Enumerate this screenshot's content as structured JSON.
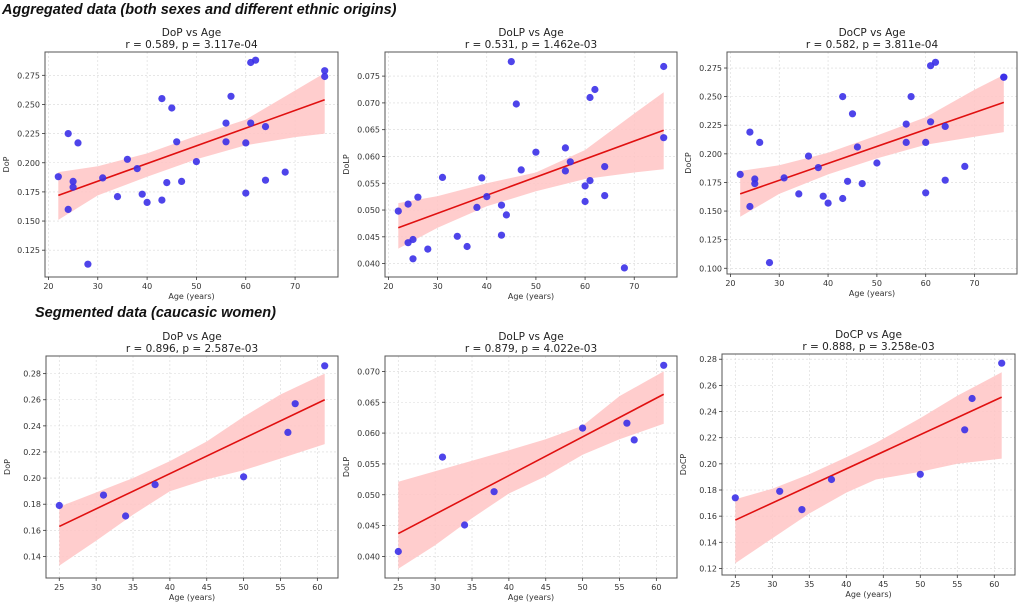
{
  "sections": {
    "aggregated_title": "Aggregated data (both sexes and different ethnic origins)",
    "segmented_title": "Segmented data (caucasic women)"
  },
  "colors": {
    "points": "#3b30e8",
    "fit_line": "#e01010",
    "ci_band": "#ffc4c4",
    "grid": "#d8d8d8",
    "frame": "#555555"
  },
  "chart_data": [
    {
      "id": "agg-dop",
      "type": "scatter",
      "title": "DoP vs Age",
      "subtitle": "r = 0.589, p = 3.117e-04",
      "xlabel": "Age (years)",
      "ylabel": "DoP",
      "xlim": [
        19.3,
        78.7
      ],
      "ylim": [
        0.102,
        0.295
      ],
      "xticks": [
        20,
        30,
        40,
        50,
        60,
        70
      ],
      "yticks": [
        0.125,
        0.15,
        0.175,
        0.2,
        0.225,
        0.25,
        0.275
      ],
      "ytick_labels": [
        "0.125",
        "0.150",
        "0.175",
        "0.200",
        "0.225",
        "0.250",
        "0.275"
      ],
      "grid": true,
      "points": [
        [
          22,
          0.188
        ],
        [
          24,
          0.225
        ],
        [
          24,
          0.16
        ],
        [
          25,
          0.184
        ],
        [
          25,
          0.179
        ],
        [
          26,
          0.217
        ],
        [
          28,
          0.113
        ],
        [
          31,
          0.187
        ],
        [
          34,
          0.171
        ],
        [
          36,
          0.203
        ],
        [
          38,
          0.195
        ],
        [
          39,
          0.173
        ],
        [
          40,
          0.166
        ],
        [
          43,
          0.255
        ],
        [
          43,
          0.168
        ],
        [
          44,
          0.183
        ],
        [
          45,
          0.247
        ],
        [
          46,
          0.218
        ],
        [
          47,
          0.184
        ],
        [
          50,
          0.201
        ],
        [
          56,
          0.234
        ],
        [
          56,
          0.218
        ],
        [
          57,
          0.257
        ],
        [
          60,
          0.217
        ],
        [
          60,
          0.174
        ],
        [
          61,
          0.286
        ],
        [
          61,
          0.234
        ],
        [
          62,
          0.288
        ],
        [
          64,
          0.231
        ],
        [
          64,
          0.185
        ],
        [
          68,
          0.192
        ],
        [
          76,
          0.279
        ],
        [
          76,
          0.274
        ]
      ],
      "fit": {
        "x": [
          22,
          76
        ],
        "y": [
          0.172,
          0.254
        ]
      },
      "ci": {
        "x": [
          22,
          30,
          40,
          50,
          60,
          70,
          76
        ],
        "lower": [
          0.151,
          0.172,
          0.188,
          0.203,
          0.215,
          0.222,
          0.225
        ],
        "upper": [
          0.192,
          0.197,
          0.208,
          0.223,
          0.237,
          0.262,
          0.277
        ]
      }
    },
    {
      "id": "agg-dolp",
      "type": "scatter",
      "title": "DoLP vs Age",
      "subtitle": "r = 0.531, p = 1.462e-03",
      "xlabel": "Age (years)",
      "ylabel": "DoLP",
      "xlim": [
        19.3,
        78.7
      ],
      "ylim": [
        0.0375,
        0.0795
      ],
      "xticks": [
        20,
        30,
        40,
        50,
        60,
        70
      ],
      "yticks": [
        0.04,
        0.045,
        0.05,
        0.055,
        0.06,
        0.065,
        0.07,
        0.075
      ],
      "ytick_labels": [
        "0.040",
        "0.045",
        "0.050",
        "0.055",
        "0.060",
        "0.065",
        "0.070",
        "0.075"
      ],
      "grid": true,
      "points": [
        [
          22,
          0.0498
        ],
        [
          24,
          0.0511
        ],
        [
          24,
          0.0439
        ],
        [
          25,
          0.0445
        ],
        [
          25,
          0.0409
        ],
        [
          26,
          0.0524
        ],
        [
          28,
          0.0427
        ],
        [
          31,
          0.0561
        ],
        [
          34,
          0.0451
        ],
        [
          36,
          0.0432
        ],
        [
          38,
          0.0505
        ],
        [
          39,
          0.056
        ],
        [
          40,
          0.0525
        ],
        [
          43,
          0.0509
        ],
        [
          43,
          0.0453
        ],
        [
          44,
          0.0491
        ],
        [
          45,
          0.0777
        ],
        [
          46,
          0.0698
        ],
        [
          47,
          0.0575
        ],
        [
          50,
          0.0608
        ],
        [
          56,
          0.0616
        ],
        [
          56,
          0.0573
        ],
        [
          57,
          0.059
        ],
        [
          60,
          0.0545
        ],
        [
          60,
          0.0516
        ],
        [
          61,
          0.071
        ],
        [
          61,
          0.0555
        ],
        [
          62,
          0.0725
        ],
        [
          64,
          0.0581
        ],
        [
          64,
          0.0527
        ],
        [
          68,
          0.0392
        ],
        [
          76,
          0.0768
        ],
        [
          76,
          0.0635
        ]
      ],
      "fit": {
        "x": [
          22,
          76
        ],
        "y": [
          0.0467,
          0.0649
        ]
      },
      "ci": {
        "x": [
          22,
          30,
          40,
          50,
          60,
          70,
          76
        ],
        "lower": [
          0.0428,
          0.0467,
          0.0507,
          0.0535,
          0.0558,
          0.057,
          0.0576
        ],
        "upper": [
          0.0513,
          0.0526,
          0.055,
          0.057,
          0.0612,
          0.068,
          0.072
        ]
      }
    },
    {
      "id": "agg-docp",
      "type": "scatter",
      "title": "DoCP vs Age",
      "subtitle": "r = 0.582, p = 3.811e-04",
      "xlabel": "Age (years)",
      "ylabel": "DoCP",
      "xlim": [
        19.3,
        78.7
      ],
      "ylim": [
        0.095,
        0.289
      ],
      "xticks": [
        20,
        30,
        40,
        50,
        60,
        70
      ],
      "yticks": [
        0.1,
        0.125,
        0.15,
        0.175,
        0.2,
        0.225,
        0.25,
        0.275
      ],
      "ytick_labels": [
        "0.100",
        "0.125",
        "0.150",
        "0.175",
        "0.200",
        "0.225",
        "0.250",
        "0.275"
      ],
      "grid": true,
      "points": [
        [
          22,
          0.182
        ],
        [
          24,
          0.219
        ],
        [
          24,
          0.154
        ],
        [
          25,
          0.178
        ],
        [
          25,
          0.174
        ],
        [
          26,
          0.21
        ],
        [
          28,
          0.105
        ],
        [
          31,
          0.179
        ],
        [
          34,
          0.165
        ],
        [
          36,
          0.198
        ],
        [
          38,
          0.188
        ],
        [
          39,
          0.163
        ],
        [
          40,
          0.157
        ],
        [
          43,
          0.25
        ],
        [
          43,
          0.161
        ],
        [
          44,
          0.176
        ],
        [
          45,
          0.235
        ],
        [
          46,
          0.206
        ],
        [
          47,
          0.174
        ],
        [
          50,
          0.192
        ],
        [
          56,
          0.226
        ],
        [
          56,
          0.21
        ],
        [
          57,
          0.25
        ],
        [
          60,
          0.21
        ],
        [
          60,
          0.166
        ],
        [
          61,
          0.277
        ],
        [
          61,
          0.228
        ],
        [
          62,
          0.28
        ],
        [
          64,
          0.224
        ],
        [
          64,
          0.177
        ],
        [
          68,
          0.189
        ],
        [
          76,
          0.267
        ],
        [
          76,
          0.267
        ]
      ],
      "fit": {
        "x": [
          22,
          76
        ],
        "y": [
          0.165,
          0.245
        ]
      },
      "ci": {
        "x": [
          22,
          30,
          40,
          50,
          60,
          70,
          76
        ],
        "lower": [
          0.145,
          0.165,
          0.182,
          0.196,
          0.208,
          0.215,
          0.219
        ],
        "upper": [
          0.185,
          0.19,
          0.201,
          0.216,
          0.232,
          0.256,
          0.269
        ]
      }
    },
    {
      "id": "seg-dop",
      "type": "scatter",
      "title": "DoP vs Age",
      "subtitle": "r = 0.896, p = 2.587e-03",
      "xlabel": "Age (years)",
      "ylabel": "DoP",
      "xlim": [
        23.2,
        62.8
      ],
      "ylim": [
        0.1235,
        0.2935
      ],
      "xticks": [
        25,
        30,
        35,
        40,
        45,
        50,
        55,
        60
      ],
      "yticks": [
        0.14,
        0.16,
        0.18,
        0.2,
        0.22,
        0.24,
        0.26,
        0.28
      ],
      "ytick_labels": [
        "0.14",
        "0.16",
        "0.18",
        "0.20",
        "0.22",
        "0.24",
        "0.26",
        "0.28"
      ],
      "grid": true,
      "points": [
        [
          25,
          0.179
        ],
        [
          31,
          0.187
        ],
        [
          34,
          0.171
        ],
        [
          38,
          0.195
        ],
        [
          50,
          0.201
        ],
        [
          56,
          0.235
        ],
        [
          57,
          0.257
        ],
        [
          61,
          0.286
        ]
      ],
      "fit": {
        "x": [
          25,
          61
        ],
        "y": [
          0.163,
          0.26
        ]
      },
      "ci": {
        "x": [
          25,
          30,
          35,
          40,
          45,
          50,
          55,
          61
        ],
        "lower": [
          0.133,
          0.152,
          0.172,
          0.19,
          0.199,
          0.206,
          0.215,
          0.226
        ],
        "upper": [
          0.178,
          0.189,
          0.2,
          0.213,
          0.228,
          0.247,
          0.264,
          0.28
        ]
      }
    },
    {
      "id": "seg-dolp",
      "type": "scatter",
      "title": "DoLP vs Age",
      "subtitle": "r = 0.879, p = 4.022e-03",
      "xlabel": "Age (years)",
      "ylabel": "DoLP",
      "xlim": [
        23.2,
        62.8
      ],
      "ylim": [
        0.0365,
        0.0725
      ],
      "xticks": [
        25,
        30,
        35,
        40,
        45,
        50,
        55,
        60
      ],
      "yticks": [
        0.04,
        0.045,
        0.05,
        0.055,
        0.06,
        0.065,
        0.07
      ],
      "ytick_labels": [
        "0.040",
        "0.045",
        "0.050",
        "0.055",
        "0.060",
        "0.065",
        "0.070"
      ],
      "grid": true,
      "points": [
        [
          25,
          0.0408
        ],
        [
          31,
          0.0561
        ],
        [
          34,
          0.0451
        ],
        [
          38,
          0.0505
        ],
        [
          50,
          0.0608
        ],
        [
          56,
          0.0616
        ],
        [
          57,
          0.0589
        ],
        [
          61,
          0.071
        ]
      ],
      "fit": {
        "x": [
          25,
          61
        ],
        "y": [
          0.0437,
          0.0663
        ]
      },
      "ci": {
        "x": [
          25,
          30,
          35,
          40,
          45,
          50,
          55,
          61
        ],
        "lower": [
          0.038,
          0.0418,
          0.0462,
          0.0502,
          0.053,
          0.0565,
          0.059,
          0.0615
        ],
        "upper": [
          0.0521,
          0.0538,
          0.0555,
          0.0572,
          0.059,
          0.0612,
          0.066,
          0.07
        ]
      }
    },
    {
      "id": "seg-docp",
      "type": "scatter",
      "title": "DoCP vs Age",
      "subtitle": "r = 0.888, p = 3.258e-03",
      "xlabel": "Age (years)",
      "ylabel": "DoCP",
      "xlim": [
        23.2,
        62.8
      ],
      "ylim": [
        0.115,
        0.284
      ],
      "xticks": [
        25,
        30,
        35,
        40,
        45,
        50,
        55,
        60
      ],
      "yticks": [
        0.12,
        0.14,
        0.16,
        0.18,
        0.2,
        0.22,
        0.24,
        0.26,
        0.28
      ],
      "ytick_labels": [
        "0.12",
        "0.14",
        "0.16",
        "0.18",
        "0.20",
        "0.22",
        "0.24",
        "0.26",
        "0.28"
      ],
      "grid": true,
      "points": [
        [
          25,
          0.174
        ],
        [
          31,
          0.179
        ],
        [
          34,
          0.165
        ],
        [
          38,
          0.188
        ],
        [
          50,
          0.192
        ],
        [
          56,
          0.226
        ],
        [
          57,
          0.25
        ],
        [
          61,
          0.277
        ]
      ],
      "fit": {
        "x": [
          25,
          61
        ],
        "y": [
          0.157,
          0.251
        ]
      },
      "ci": {
        "x": [
          25,
          30,
          35,
          40,
          44,
          50,
          55,
          61
        ],
        "lower": [
          0.124,
          0.143,
          0.162,
          0.178,
          0.188,
          0.194,
          0.2,
          0.204
        ],
        "upper": [
          0.173,
          0.181,
          0.192,
          0.205,
          0.216,
          0.235,
          0.252,
          0.27
        ]
      }
    }
  ]
}
